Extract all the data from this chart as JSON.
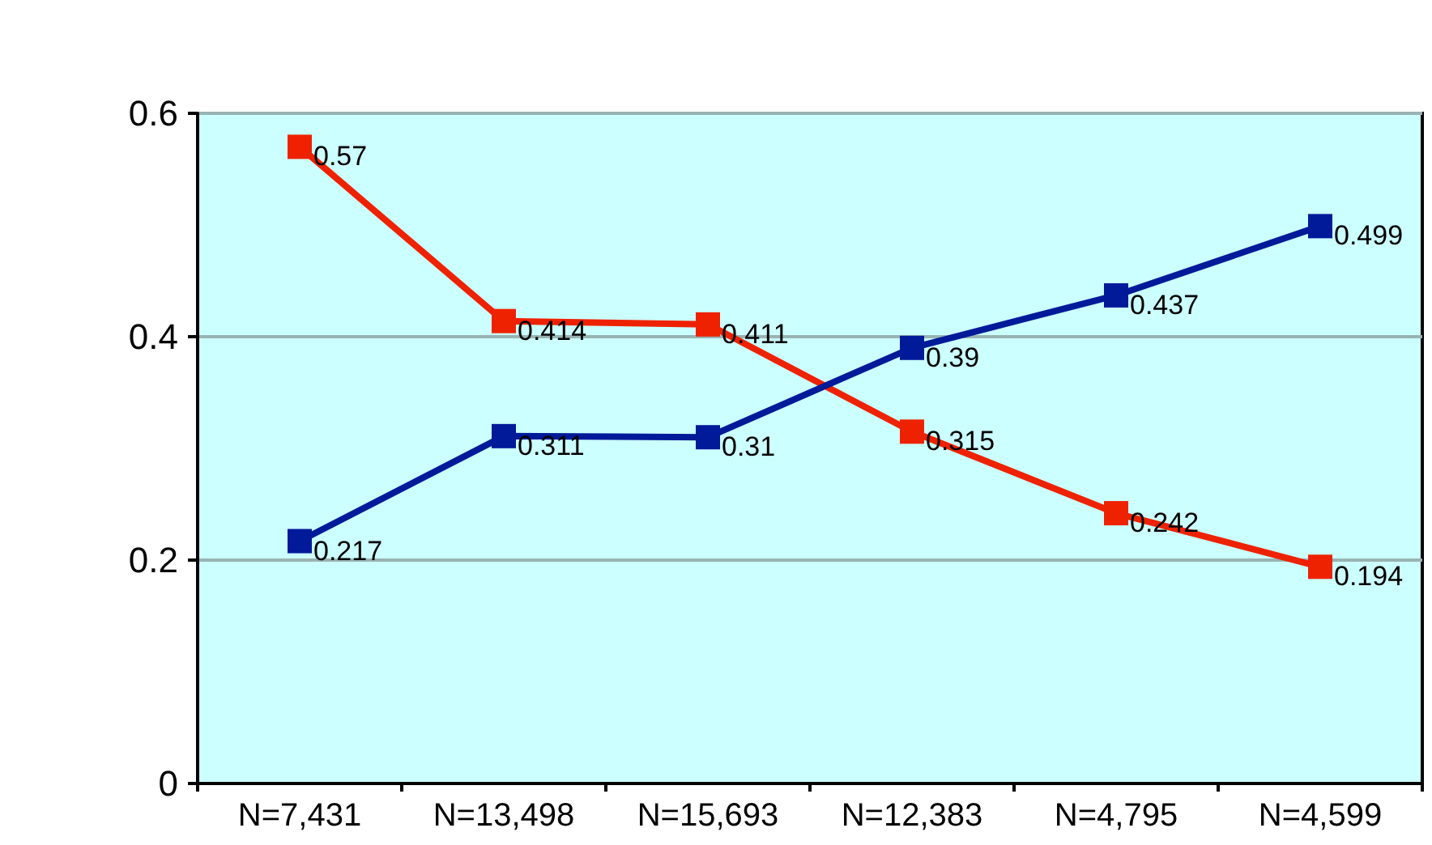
{
  "chart_data": {
    "type": "line",
    "categories": [
      "N=7,431",
      "N=13,498",
      "N=15,693",
      "N=12,383",
      "N=4,795",
      "N=4,599"
    ],
    "series": [
      {
        "color": "#ee2200",
        "values": [
          0.57,
          0.414,
          0.411,
          0.315,
          0.242,
          0.194
        ]
      },
      {
        "color": "#001a99",
        "values": [
          0.217,
          0.311,
          0.31,
          0.39,
          0.437,
          0.499
        ]
      }
    ],
    "ylim": [
      0,
      0.6
    ],
    "yticks": [
      0,
      0.2,
      0.4,
      0.6
    ],
    "grid": "y",
    "marker": "square",
    "line_style": "solid",
    "data_labels": true
  }
}
